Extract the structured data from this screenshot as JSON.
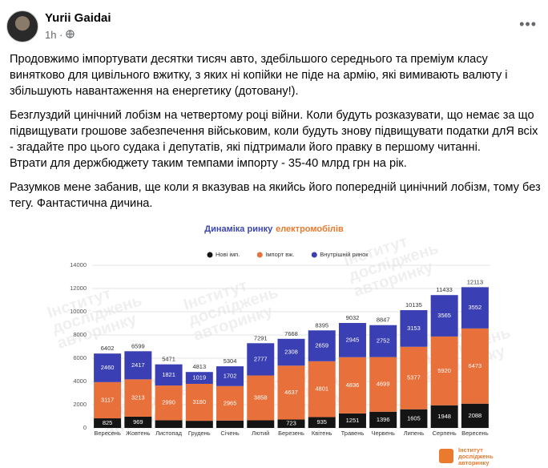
{
  "post": {
    "author": "Yurii Gaidai",
    "time": "1h",
    "paragraphs": [
      [
        "Продовжимо імпортувати десятки тисяч авто, здебільшого середнього та преміум класу винятково для цивільного вжитку, з яких ні копійки не піде на армію, які вимивають валюту і збільшують навантаження на енергетику (дотовану!)."
      ],
      [
        "Безглуздий цинічний лобізм на четвертому році війни. Коли будуть розказувати, що немає за що підвищувати грошове забезпечення військовим, коли будуть знову підвищувати податки длЯ всіх - згадайте про цього судака і депутатів, які підтримали його правку в першому читанні.",
        "Втрати для держбюджету таким темпами імпорту - 35-40 млрд грн на рік."
      ],
      [
        "Разумков мене забанив, ще коли я вказував на якийсь його попередній цинічний лобізм, тому без тегу. Фантастична дичина."
      ]
    ]
  },
  "chart_data": {
    "type": "bar",
    "stacked": true,
    "title_parts": [
      {
        "text": "Динаміка ринку",
        "color": "#3b47ad"
      },
      {
        "text": "електромобілів",
        "color": "#ea7a2e"
      }
    ],
    "categories": [
      "Вересень",
      "Жовтень",
      "Листопад",
      "Грудень",
      "Січень",
      "Лютий",
      "Березень",
      "Квітень",
      "Травень",
      "Червень",
      "Липень",
      "Серпень",
      "Вересень"
    ],
    "series": [
      {
        "name": "Нові імп.",
        "color": "#141414",
        "values": [
          825,
          969,
          660,
          614,
          637,
          656,
          723,
          935,
          1251,
          1396,
          1605,
          1948,
          2088
        ],
        "value_labels": [
          "825",
          "969",
          null,
          null,
          null,
          null,
          "723",
          "935",
          "1251",
          "1396",
          "1605",
          "1948",
          "2088"
        ]
      },
      {
        "name": "Імпорт вж.",
        "color": "#e8703a",
        "values": [
          3117,
          3213,
          2990,
          3180,
          2965,
          3858,
          4637,
          4801,
          4836,
          4699,
          5377,
          5920,
          6473
        ]
      },
      {
        "name": "Внутрішній ринок",
        "color": "#3a3fb3",
        "values": [
          2460,
          2417,
          1821,
          1019,
          1702,
          2777,
          2308,
          2659,
          2945,
          2752,
          3153,
          3565,
          3552
        ]
      }
    ],
    "totals": [
      6402,
      6599,
      5471,
      4813,
      5304,
      7291,
      7668,
      8395,
      9032,
      8847,
      10135,
      11433,
      12113
    ],
    "ylim": [
      0,
      14000
    ],
    "yticks": [
      0,
      2000,
      4000,
      6000,
      8000,
      10000,
      12000,
      14000
    ],
    "grid": true,
    "legend": "top",
    "watermark": [
      "Інститут",
      "досліджень",
      "авторинку"
    ]
  }
}
